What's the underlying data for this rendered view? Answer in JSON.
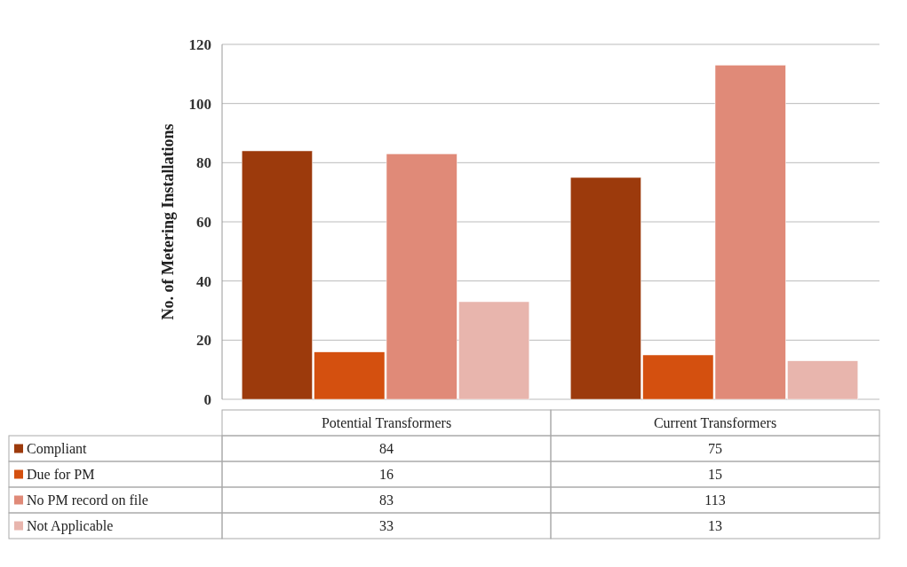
{
  "chart_data": {
    "type": "bar",
    "ylabel": "No. of Metering Installations",
    "categories": [
      "Potential Transformers",
      "Current Transformers"
    ],
    "series": [
      {
        "name": "Compliant",
        "color": "#9c3a0c",
        "values": [
          84,
          75
        ]
      },
      {
        "name": "Due for PM",
        "color": "#d4500f",
        "values": [
          16,
          15
        ]
      },
      {
        "name": "No PM record on file",
        "color": "#e08a78",
        "values": [
          83,
          113
        ]
      },
      {
        "name": "Not Applicable",
        "color": "#e8b5ad",
        "values": [
          33,
          13
        ]
      }
    ],
    "ylim": [
      0,
      120
    ],
    "yticks": [
      0,
      20,
      40,
      60,
      80,
      100,
      120
    ],
    "grid": "y",
    "data_labels": true,
    "legend": "bottom"
  }
}
